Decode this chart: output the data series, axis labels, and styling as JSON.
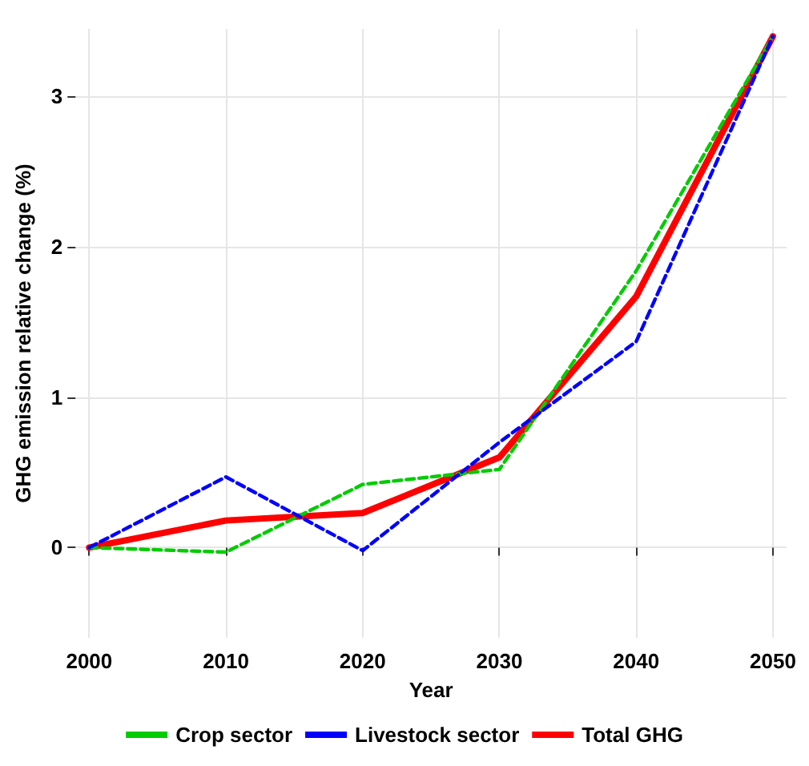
{
  "chart_data": {
    "type": "line",
    "xlabel": "Year",
    "ylabel": "GHG emission relative change (%)",
    "x": [
      2000,
      2010,
      2020,
      2030,
      2040,
      2050
    ],
    "series": [
      {
        "name": "Crop sector",
        "color": "#00cc00",
        "line_style": "dashed",
        "values": [
          0,
          -0.03,
          0.42,
          0.52,
          1.84,
          3.4
        ]
      },
      {
        "name": "Livestock sector",
        "color": "#0000ff",
        "line_style": "dashed",
        "values": [
          0,
          0.47,
          -0.02,
          0.7,
          1.37,
          3.4
        ]
      },
      {
        "name": "Total GHG",
        "color": "#ff0000",
        "line_style": "solid",
        "values": [
          0,
          0.18,
          0.23,
          0.6,
          1.67,
          3.4
        ]
      }
    ],
    "xlim": [
      1999,
      2051
    ],
    "xticks": [
      2000,
      2010,
      2020,
      2030,
      2040,
      2050
    ],
    "ylim": [
      -0.6,
      3.45
    ],
    "yticks": [
      0,
      1,
      2,
      3
    ],
    "grid": true,
    "legend": "bottom",
    "marker": "none"
  }
}
